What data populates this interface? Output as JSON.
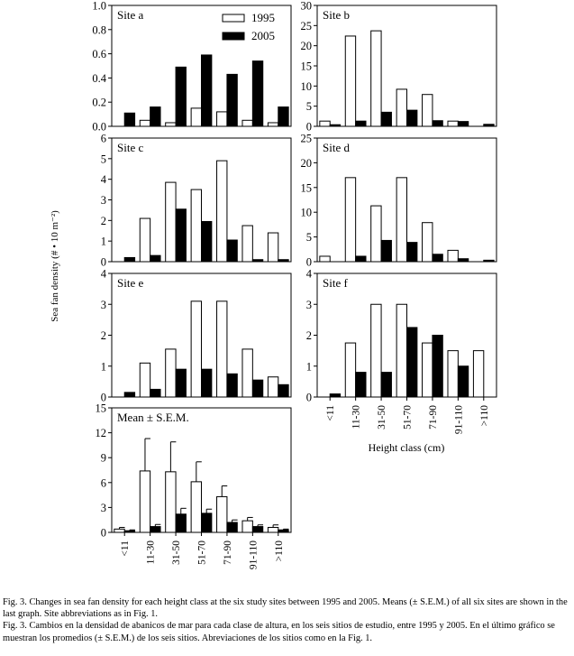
{
  "figure": {
    "y_axis_label": "Sea fan density (# • 10 m⁻²)",
    "x_axis_label": "Height class (cm)",
    "legend": [
      {
        "label": "1995",
        "color": "#ffffff"
      },
      {
        "label": "2005",
        "color": "#000000"
      }
    ]
  },
  "chart_data": [
    {
      "type": "bar",
      "panel_label": "Site a",
      "categories": [
        "<11",
        "11-30",
        "31-50",
        "51-70",
        "71-90",
        "91-110",
        ">110"
      ],
      "ylim": [
        0,
        1.0
      ],
      "yticks": [
        "0.0",
        "0.2",
        "0.4",
        "0.6",
        "0.8",
        "1.0"
      ],
      "series": [
        {
          "name": "1995",
          "values": [
            0.0,
            0.05,
            0.03,
            0.15,
            0.12,
            0.05,
            0.03
          ]
        },
        {
          "name": "2005",
          "values": [
            0.11,
            0.16,
            0.49,
            0.59,
            0.43,
            0.54,
            0.16
          ]
        }
      ]
    },
    {
      "type": "bar",
      "panel_label": "Site b",
      "categories": [
        "<11",
        "11-30",
        "31-50",
        "51-70",
        "71-90",
        "91-110",
        ">110"
      ],
      "ylim": [
        0,
        30
      ],
      "yticks": [
        "0",
        "5",
        "10",
        "15",
        "20",
        "25",
        "30"
      ],
      "series": [
        {
          "name": "1995",
          "values": [
            1.3,
            22.4,
            23.7,
            9.2,
            7.9,
            1.3,
            0.0
          ]
        },
        {
          "name": "2005",
          "values": [
            0.4,
            1.3,
            3.5,
            4.0,
            1.4,
            1.2,
            0.5
          ]
        }
      ]
    },
    {
      "type": "bar",
      "panel_label": "Site c",
      "categories": [
        "<11",
        "11-30",
        "31-50",
        "51-70",
        "71-90",
        "91-110",
        ">110"
      ],
      "ylim": [
        0,
        6
      ],
      "yticks": [
        "0",
        "1",
        "2",
        "3",
        "4",
        "5",
        "6"
      ],
      "series": [
        {
          "name": "1995",
          "values": [
            0.0,
            2.1,
            3.85,
            3.5,
            4.9,
            1.75,
            1.4
          ]
        },
        {
          "name": "2005",
          "values": [
            0.2,
            0.3,
            2.55,
            1.95,
            1.05,
            0.1,
            0.1
          ]
        }
      ]
    },
    {
      "type": "bar",
      "panel_label": "Site d",
      "categories": [
        "<11",
        "11-30",
        "31-50",
        "51-70",
        "71-90",
        "91-110",
        ">110"
      ],
      "ylim": [
        0,
        25
      ],
      "yticks": [
        "0",
        "5",
        "10",
        "15",
        "20",
        "25"
      ],
      "series": [
        {
          "name": "1995",
          "values": [
            1.1,
            17.0,
            11.3,
            17.0,
            7.9,
            2.3,
            0.0
          ]
        },
        {
          "name": "2005",
          "values": [
            0.0,
            1.1,
            4.3,
            3.9,
            1.5,
            0.6,
            0.3
          ]
        }
      ]
    },
    {
      "type": "bar",
      "panel_label": "Site e",
      "categories": [
        "<11",
        "11-30",
        "31-50",
        "51-70",
        "71-90",
        "91-110",
        ">110"
      ],
      "ylim": [
        0,
        4
      ],
      "yticks": [
        "0",
        "1",
        "2",
        "3",
        "4"
      ],
      "series": [
        {
          "name": "1995",
          "values": [
            0.0,
            1.1,
            1.55,
            3.1,
            3.1,
            1.55,
            0.65
          ]
        },
        {
          "name": "2005",
          "values": [
            0.15,
            0.25,
            0.9,
            0.9,
            0.75,
            0.55,
            0.4
          ]
        }
      ]
    },
    {
      "type": "bar",
      "panel_label": "Site f",
      "categories": [
        "<11",
        "11-30",
        "31-50",
        "51-70",
        "71-90",
        "91-110",
        ">110"
      ],
      "ylim": [
        0,
        4
      ],
      "yticks": [
        "0",
        "1",
        "2",
        "3",
        "4"
      ],
      "series": [
        {
          "name": "1995",
          "values": [
            0.0,
            1.75,
            3.0,
            3.0,
            1.75,
            1.5,
            1.5
          ]
        },
        {
          "name": "2005",
          "values": [
            0.1,
            0.8,
            0.8,
            2.25,
            2.0,
            1.0,
            0.0
          ]
        }
      ]
    },
    {
      "type": "bar",
      "panel_label": "Mean ± S.E.M.",
      "categories": [
        "<11",
        "11-30",
        "31-50",
        "51-70",
        "71-90",
        "91-110",
        ">110"
      ],
      "ylim": [
        0,
        15
      ],
      "yticks": [
        "0",
        "3",
        "6",
        "9",
        "12",
        "15"
      ],
      "series": [
        {
          "name": "1995",
          "values": [
            0.4,
            7.4,
            7.3,
            6.1,
            4.3,
            1.4,
            0.6
          ],
          "sem": [
            0.2,
            3.9,
            3.6,
            2.4,
            1.3,
            0.4,
            0.3
          ]
        },
        {
          "name": "2005",
          "values": [
            0.2,
            0.7,
            2.2,
            2.3,
            1.2,
            0.7,
            0.3
          ],
          "sem": [
            0.1,
            0.25,
            0.7,
            0.5,
            0.3,
            0.2,
            0.1
          ]
        }
      ]
    }
  ],
  "caption": {
    "english": "Fig. 3. Changes in sea fan density for each height class at the six study sites between 1995 and 2005. Means (± S.E.M.) of all six sites are shown in the last graph. Site abbreviations as in Fig. 1.",
    "spanish": "Fig. 3. Cambios en la densidad de abanicos de mar para cada clase de altura, en los seis sitios de estudio, entre 1995 y 2005. En el último gráfico se muestran los promedios (± S.E.M.) de los seis sitios. Abreviaciones de los sitios como en la Fig. 1."
  }
}
